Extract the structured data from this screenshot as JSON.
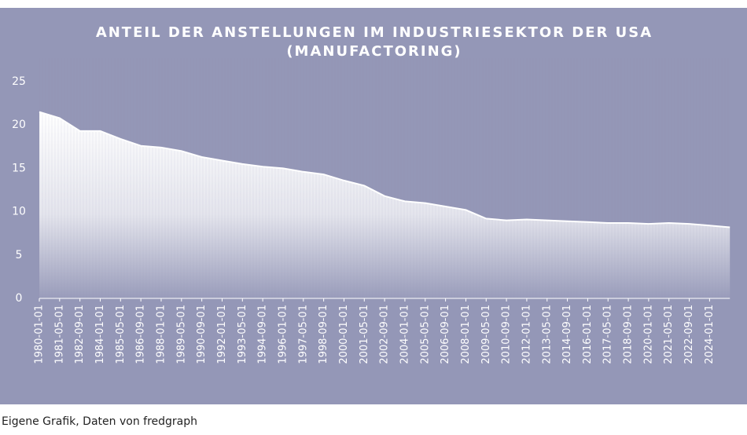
{
  "chart_data": {
    "type": "area",
    "title": [
      "ANTEIL DER ANSTELLUNGEN IM INDUSTRIESEKTOR DER USA",
      "(MANUFACTORING)"
    ],
    "caption": "Eigene Grafik, Daten von fredgraph",
    "categories": [
      "1980-01-01",
      "1981-05-01",
      "1982-09-01",
      "1984-01-01",
      "1985-05-01",
      "1986-09-01",
      "1988-01-01",
      "1989-05-01",
      "1990-09-01",
      "1992-01-01",
      "1993-05-01",
      "1994-09-01",
      "1996-01-01",
      "1997-05-01",
      "1998-09-01",
      "2000-01-01",
      "2001-05-01",
      "2002-09-01",
      "2004-01-01",
      "2005-05-01",
      "2006-09-01",
      "2008-01-01",
      "2009-05-01",
      "2010-09-01",
      "2012-01-01",
      "2013-05-01",
      "2014-09-01",
      "2016-01-01",
      "2017-05-01",
      "2018-09-01",
      "2020-01-01",
      "2021-05-01",
      "2022-09-01",
      "2024-01-01",
      null
    ],
    "values": [
      21.5,
      20.8,
      19.3,
      19.3,
      18.4,
      17.6,
      17.4,
      17.0,
      16.3,
      15.9,
      15.5,
      15.2,
      15.0,
      14.6,
      14.3,
      13.6,
      13.0,
      11.8,
      11.2,
      11.0,
      10.6,
      10.2,
      9.2,
      9.0,
      9.1,
      9.0,
      8.9,
      8.8,
      8.7,
      8.7,
      8.6,
      8.7,
      8.6,
      8.4,
      8.2
    ],
    "color": "#ffffff",
    "ylim": [
      0,
      25
    ],
    "yticks": [
      0,
      5,
      10,
      15,
      20,
      25
    ],
    "grid": false
  }
}
